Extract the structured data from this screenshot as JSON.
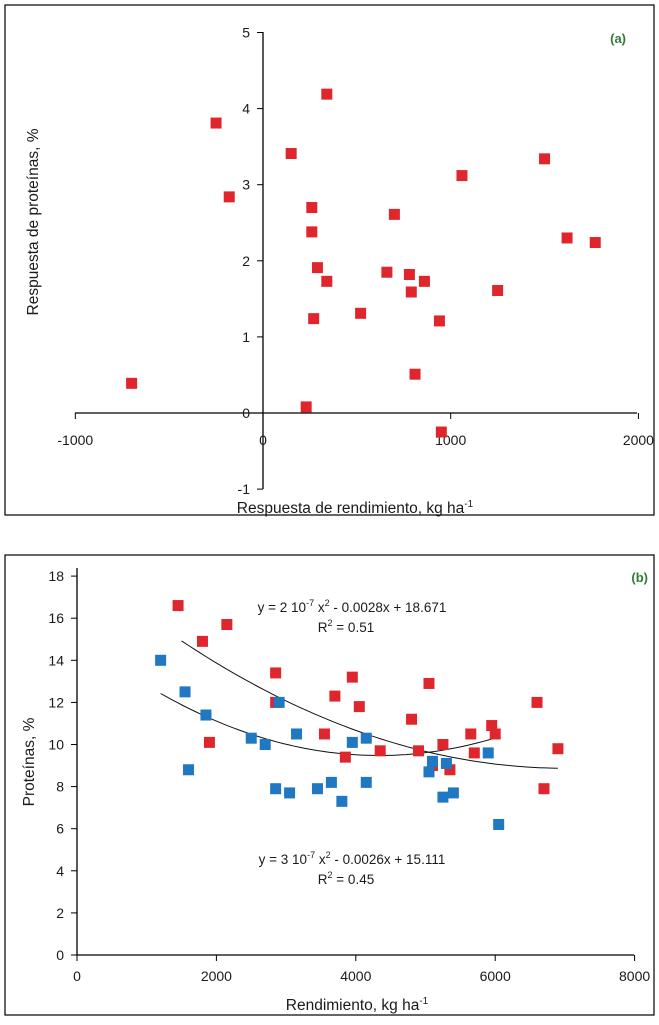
{
  "chart_data": [
    {
      "type": "scatter",
      "panel_label": "(a)",
      "xlabel": "Respuesta de rendimiento, kg ha",
      "xlabel_sup": "-1",
      "ylabel": "Respuesta de proteínas, %",
      "xlim": [
        -1000,
        2000
      ],
      "ylim": [
        -1,
        5
      ],
      "x_ticks": [
        -1000,
        0,
        1000,
        2000
      ],
      "y_ticks": [
        -1,
        0,
        1,
        2,
        3,
        4,
        5
      ],
      "colors": {
        "points": "#e0262d"
      },
      "points": [
        [
          -700,
          0.39
        ],
        [
          -250,
          3.81
        ],
        [
          -180,
          2.84
        ],
        [
          150,
          3.41
        ],
        [
          230,
          0.08
        ],
        [
          260,
          2.7
        ],
        [
          260,
          2.38
        ],
        [
          270,
          1.24
        ],
        [
          290,
          1.91
        ],
        [
          340,
          1.73
        ],
        [
          340,
          4.19
        ],
        [
          520,
          1.31
        ],
        [
          660,
          1.85
        ],
        [
          700,
          2.61
        ],
        [
          780,
          1.82
        ],
        [
          790,
          1.59
        ],
        [
          810,
          0.51
        ],
        [
          860,
          1.73
        ],
        [
          940,
          1.21
        ],
        [
          950,
          -0.25
        ],
        [
          1060,
          3.12
        ],
        [
          1250,
          1.61
        ],
        [
          1500,
          3.34
        ],
        [
          1620,
          2.3
        ],
        [
          1770,
          2.24
        ]
      ]
    },
    {
      "type": "scatter",
      "panel_label": "(b)",
      "xlabel": "Rendimiento, kg ha",
      "xlabel_sup": "-1",
      "ylabel": "Proteínas, %",
      "xlim": [
        0,
        8000
      ],
      "ylim": [
        0,
        18
      ],
      "x_ticks": [
        0,
        2000,
        4000,
        6000,
        8000
      ],
      "y_ticks": [
        0,
        2,
        4,
        6,
        8,
        10,
        12,
        14,
        16,
        18
      ],
      "series": [
        {
          "color": "#e0262d",
          "points": [
            [
              1450,
              16.6
            ],
            [
              1800,
              14.9
            ],
            [
              1900,
              10.1
            ],
            [
              2150,
              15.7
            ],
            [
              2850,
              12.0
            ],
            [
              2850,
              13.4
            ],
            [
              3550,
              10.5
            ],
            [
              3700,
              12.3
            ],
            [
              3850,
              9.4
            ],
            [
              3950,
              13.2
            ],
            [
              4050,
              11.8
            ],
            [
              4350,
              9.7
            ],
            [
              4800,
              11.2
            ],
            [
              4900,
              9.7
            ],
            [
              5050,
              12.9
            ],
            [
              5100,
              9.0
            ],
            [
              5250,
              10.0
            ],
            [
              5350,
              8.8
            ],
            [
              5650,
              10.5
            ],
            [
              5700,
              9.6
            ],
            [
              5950,
              10.9
            ],
            [
              6000,
              10.5
            ],
            [
              6600,
              12.0
            ],
            [
              6700,
              7.9
            ],
            [
              6900,
              9.8
            ]
          ],
          "fit": {
            "a": 2e-07,
            "b": -0.0028,
            "c": 18.671,
            "x_range": [
              1500,
              6900
            ]
          },
          "equation_prefix": "y = 2 10",
          "equation_exp": "-7",
          "equation_mid": " x",
          "equation_mid_sup": "2",
          "equation_suffix": " - 0.0028x + 18.671",
          "r2_label": "R",
          "r2_sup": "2",
          "r2_suffix": " = 0.51"
        },
        {
          "color": "#1f78c1",
          "points": [
            [
              1200,
              14.0
            ],
            [
              1550,
              12.5
            ],
            [
              1600,
              8.8
            ],
            [
              1850,
              11.4
            ],
            [
              2500,
              10.3
            ],
            [
              2700,
              10.0
            ],
            [
              2850,
              7.9
            ],
            [
              2900,
              12.0
            ],
            [
              3050,
              7.7
            ],
            [
              3150,
              10.5
            ],
            [
              3450,
              7.9
            ],
            [
              3650,
              8.2
            ],
            [
              3800,
              7.3
            ],
            [
              3950,
              10.1
            ],
            [
              4150,
              10.3
            ],
            [
              4150,
              8.2
            ],
            [
              5050,
              8.7
            ],
            [
              5100,
              9.2
            ],
            [
              5250,
              7.5
            ],
            [
              5300,
              9.1
            ],
            [
              5400,
              7.7
            ],
            [
              5900,
              9.6
            ],
            [
              6050,
              6.2
            ]
          ],
          "fit": {
            "a": 3e-07,
            "b": -0.0026,
            "c": 15.111,
            "x_range": [
              1200,
              6000
            ]
          },
          "equation_prefix": "y = 3 10",
          "equation_exp": "-7",
          "equation_mid": " x",
          "equation_mid_sup": "2",
          "equation_suffix": " - 0.0026x + 15.111",
          "r2_label": "R",
          "r2_sup": "2",
          "r2_suffix": " = 0.45"
        }
      ]
    }
  ]
}
